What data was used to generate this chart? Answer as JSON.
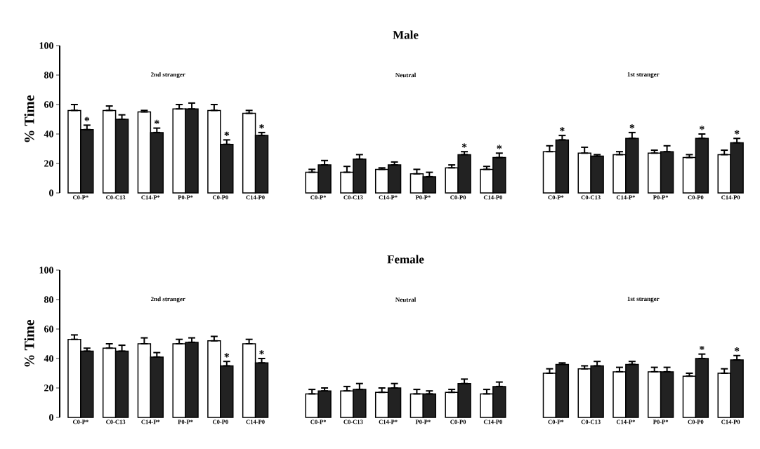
{
  "chart_data": [
    {
      "type": "bar",
      "title": "Male",
      "ylabel": "% Time",
      "ylim": [
        0,
        100
      ],
      "yticks": [
        0,
        20,
        40,
        60,
        80,
        100
      ],
      "annotations": [
        "2nd stranger",
        "Neutral",
        "1st stranger"
      ],
      "categories": [
        "C0-P*",
        "C0-C13",
        "C14-P*",
        "P0-P*",
        "C0-P0",
        "C14-P0",
        "C0-P*",
        "C0-C13",
        "C14-P*",
        "P0-P*",
        "C0-P0",
        "C14-P0",
        "C0-P*",
        "C0-C13",
        "C14-P*",
        "P0-P*",
        "C0-P0",
        "C14-P0"
      ],
      "series": [
        {
          "color": "#ffffff",
          "values": [
            56,
            56,
            55,
            57,
            56,
            54,
            14,
            14,
            16,
            13,
            17,
            16,
            28,
            27,
            26,
            27,
            24,
            26
          ],
          "errors": [
            [
              56,
              60
            ],
            [
              56,
              59
            ],
            [
              55,
              56
            ],
            [
              57,
              60
            ],
            [
              56,
              60
            ],
            [
              54,
              56
            ],
            [
              14,
              16
            ],
            [
              14,
              18
            ],
            [
              16,
              17
            ],
            [
              13,
              16
            ],
            [
              17,
              19
            ],
            [
              16,
              18
            ],
            [
              28,
              32
            ],
            [
              27,
              31
            ],
            [
              26,
              28
            ],
            [
              27,
              29
            ],
            [
              24,
              26
            ],
            [
              26,
              29
            ]
          ]
        },
        {
          "color": "#222222",
          "values": [
            43,
            50,
            41,
            57,
            33,
            39,
            19,
            23,
            19,
            11,
            26,
            24,
            36,
            25,
            37,
            28,
            37,
            34
          ],
          "errors": [
            [
              43,
              46
            ],
            [
              50,
              53
            ],
            [
              41,
              44
            ],
            [
              57,
              61
            ],
            [
              33,
              36
            ],
            [
              39,
              41
            ],
            [
              19,
              22
            ],
            [
              23,
              26
            ],
            [
              19,
              21
            ],
            [
              11,
              14
            ],
            [
              26,
              28
            ],
            [
              24,
              27
            ],
            [
              36,
              39
            ],
            [
              25,
              26
            ],
            [
              37,
              41
            ],
            [
              28,
              32
            ],
            [
              37,
              40
            ],
            [
              34,
              37
            ]
          ],
          "value_labels": [
            "*",
            null,
            "*",
            null,
            "*",
            "*",
            null,
            null,
            null,
            null,
            "*",
            "*",
            "*",
            null,
            "*",
            null,
            "*",
            "*"
          ]
        }
      ]
    },
    {
      "type": "bar",
      "title": "Female",
      "ylabel": "% Time",
      "ylim": [
        0,
        100
      ],
      "yticks": [
        0,
        20,
        40,
        60,
        80,
        100
      ],
      "annotations": [
        "2nd stranger",
        "Neutral",
        "1st stranger"
      ],
      "categories": [
        "C0-P*",
        "C0-C13",
        "C14-P*",
        "P0-P*",
        "C0-P0",
        "C14-P0",
        "C0-P*",
        "C0-C13",
        "C14-P*",
        "P0-P*",
        "C0-P0",
        "C14-P0",
        "C0-P*",
        "C0-C13",
        "C14-P*",
        "P0-P*",
        "C0-P0",
        "C14-P0"
      ],
      "series": [
        {
          "color": "#ffffff",
          "values": [
            53,
            47,
            50,
            50,
            52,
            50,
            16,
            18,
            17,
            16,
            17,
            16,
            30,
            33,
            31,
            31,
            28,
            30
          ],
          "errors": [
            [
              53,
              56
            ],
            [
              47,
              50
            ],
            [
              50,
              54
            ],
            [
              50,
              53
            ],
            [
              52,
              55
            ],
            [
              50,
              53
            ],
            [
              16,
              19
            ],
            [
              18,
              21
            ],
            [
              17,
              20
            ],
            [
              16,
              19
            ],
            [
              17,
              19
            ],
            [
              16,
              19
            ],
            [
              30,
              33
            ],
            [
              33,
              35
            ],
            [
              31,
              34
            ],
            [
              31,
              34
            ],
            [
              28,
              30
            ],
            [
              30,
              33
            ]
          ]
        },
        {
          "color": "#222222",
          "values": [
            45,
            45,
            41,
            51,
            35,
            37,
            18,
            19,
            20,
            16,
            23,
            21,
            36,
            35,
            36,
            31,
            40,
            39
          ],
          "errors": [
            [
              45,
              47
            ],
            [
              45,
              49
            ],
            [
              41,
              44
            ],
            [
              51,
              54
            ],
            [
              35,
              38
            ],
            [
              37,
              40
            ],
            [
              18,
              20
            ],
            [
              19,
              23
            ],
            [
              20,
              23
            ],
            [
              16,
              18
            ],
            [
              23,
              26
            ],
            [
              21,
              24
            ],
            [
              36,
              37
            ],
            [
              35,
              38
            ],
            [
              36,
              38
            ],
            [
              31,
              34
            ],
            [
              40,
              43
            ],
            [
              39,
              42
            ]
          ],
          "value_labels": [
            null,
            null,
            null,
            null,
            "*",
            "*",
            null,
            null,
            null,
            null,
            null,
            null,
            null,
            null,
            null,
            null,
            "*",
            "*"
          ]
        }
      ]
    }
  ]
}
